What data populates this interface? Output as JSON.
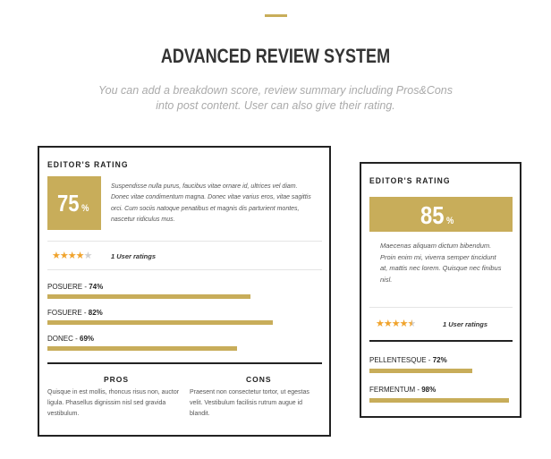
{
  "header": {
    "title": "ADVANCED REVIEW SYSTEM",
    "subtitle_line1": "You can add a breakdown score, review summary including Pros&Cons",
    "subtitle_line2": "into post content. User can also give their rating."
  },
  "colors": {
    "accent": "#c8ad5a",
    "border": "#222222",
    "star": "#f0a32c",
    "star_off": "#cfcfcf"
  },
  "review_a": {
    "label": "EDITOR'S RATING",
    "score": "75",
    "score_unit": "%",
    "summary": "Suspendisse nulla purus, faucibus vitae ornare id, ultrices vel diam. Donec vitae condimentum magna. Donec vitae varius eros, vitae sagittis orci. Cum sociis natoque penatibus et magnis dis parturient montes, nascetur ridiculus mus.",
    "user_rating_stars": 4,
    "user_ratings_text": "1 User ratings",
    "criteria": [
      {
        "name": "POSUERE",
        "value": "74%",
        "fraction": 0.74
      },
      {
        "name": "FOSUERE",
        "value": "82%",
        "fraction": 0.82
      },
      {
        "name": "DONEC",
        "value": "69%",
        "fraction": 0.69
      }
    ],
    "pros_heading": "PROS",
    "pros_text": "Quisque in est mollis, rhoncus risus non, auctor ligula. Phasellus dignissim nisl sed gravida vestibulum.",
    "cons_heading": "CONS",
    "cons_text": "Praesent non consectetur tortor, ut egestas velit. Vestibulum facilisis rutrum augue id blandit."
  },
  "review_b": {
    "label": "EDITOR'S RATING",
    "score": "85",
    "score_unit": "%",
    "summary": "Maecenas aliquam dictum bibendum. Proin enim mi, viverra semper tincidunt at, mattis nec lorem. Quisque nec finibus nisl.",
    "user_rating_stars": 4.5,
    "user_ratings_text": "1 User ratings",
    "criteria": [
      {
        "name": "PELLENTESQUE",
        "value": "72%",
        "fraction": 0.72
      },
      {
        "name": "FERMENTUM",
        "value": "98%",
        "fraction": 0.98
      }
    ]
  }
}
